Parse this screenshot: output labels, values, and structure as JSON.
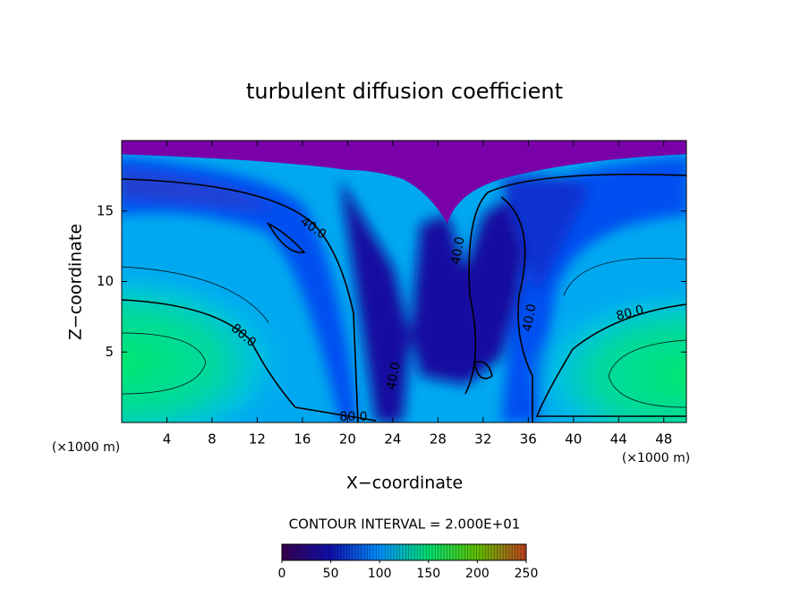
{
  "chart_data": {
    "type": "contour",
    "title": "turbulent diffusion coefficient",
    "xlabel": "X−coordinate",
    "ylabel": "Z−coordinate",
    "xunit": "(×1000 m)",
    "yunit": "(×1000 m)",
    "xlim": [
      0,
      50
    ],
    "xticks": [
      4,
      8,
      12,
      16,
      20,
      24,
      28,
      32,
      36,
      40,
      44,
      48
    ],
    "ylim": [
      0,
      20
    ],
    "yticks": [
      5,
      10,
      15
    ],
    "contour_interval_text": "CONTOUR INTERVAL = 2.000E+01",
    "contour_levels": [
      {
        "value": 40,
        "label": "40.0"
      },
      {
        "value": 80,
        "label": "80.0"
      }
    ],
    "colorbar": {
      "lim": [
        0,
        250
      ],
      "ticks": [
        0,
        50,
        100,
        150,
        200,
        250
      ],
      "colors": [
        "#3a0050",
        "#1010b0",
        "#0090ff",
        "#00e070",
        "#60c000",
        "#c04020"
      ]
    }
  }
}
